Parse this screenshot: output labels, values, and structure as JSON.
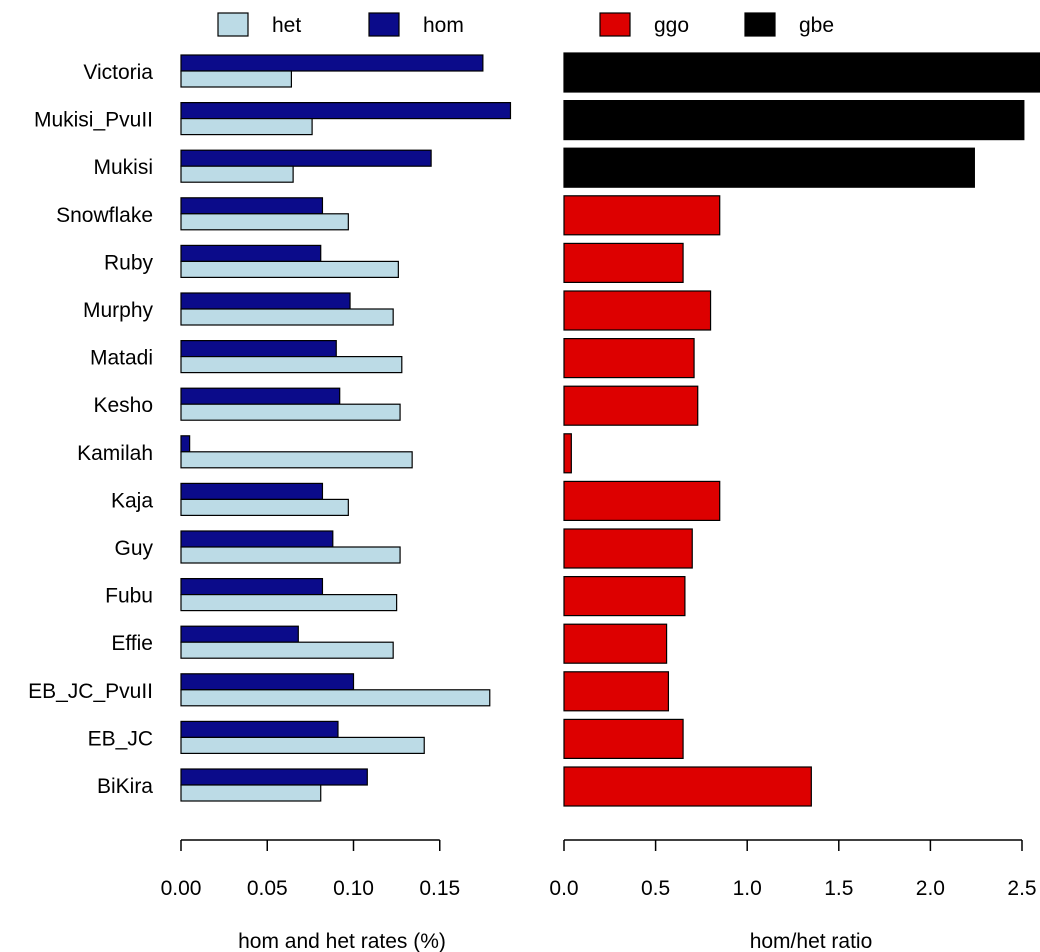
{
  "chart_data": [
    {
      "type": "bar",
      "orientation": "horizontal",
      "categories": [
        "Victoria",
        "Mukisi_PvuII",
        "Mukisi",
        "Snowflake",
        "Ruby",
        "Murphy",
        "Matadi",
        "Kesho",
        "Kamilah",
        "Kaja",
        "Guy",
        "Fubu",
        "Effie",
        "EB_JC_PvuII",
        "EB_JC",
        "BiKira"
      ],
      "series": [
        {
          "name": "hom",
          "color": "#0b0b8a",
          "values": [
            0.175,
            0.191,
            0.145,
            0.082,
            0.081,
            0.098,
            0.09,
            0.092,
            0.005,
            0.082,
            0.088,
            0.082,
            0.068,
            0.1,
            0.091,
            0.108
          ]
        },
        {
          "name": "het",
          "color": "#bcdbe6",
          "values": [
            0.064,
            0.076,
            0.065,
            0.097,
            0.126,
            0.123,
            0.128,
            0.127,
            0.134,
            0.097,
            0.127,
            0.125,
            0.123,
            0.179,
            0.141,
            0.081
          ]
        }
      ],
      "xlabel": "hom and het rates (%)",
      "xticks": [
        "0.00",
        "0.05",
        "0.10",
        "0.15"
      ],
      "xlim": [
        0,
        0.19
      ],
      "grid": false,
      "legend_position": "top"
    },
    {
      "type": "bar",
      "orientation": "horizontal",
      "categories": [
        "Victoria",
        "Mukisi_PvuII",
        "Mukisi",
        "Snowflake",
        "Ruby",
        "Murphy",
        "Matadi",
        "Kesho",
        "Kamilah",
        "Kaja",
        "Guy",
        "Fubu",
        "Effie",
        "EB_JC_PvuII",
        "EB_JC",
        "BiKira"
      ],
      "values": [
        2.62,
        2.51,
        2.24,
        0.85,
        0.65,
        0.8,
        0.71,
        0.73,
        0.04,
        0.85,
        0.7,
        0.66,
        0.56,
        0.57,
        0.65,
        1.35
      ],
      "groups": [
        "gbe",
        "gbe",
        "gbe",
        "ggo",
        "ggo",
        "ggo",
        "ggo",
        "ggo",
        "ggo",
        "ggo",
        "ggo",
        "ggo",
        "ggo",
        "ggo",
        "ggo",
        "ggo"
      ],
      "group_colors": {
        "ggo": "#dd0000",
        "gbe": "#000000"
      },
      "xlabel": "hom/het ratio",
      "xticks": [
        "0.0",
        "0.5",
        "1.0",
        "1.5",
        "2.0",
        "2.5"
      ],
      "xlim": [
        0,
        2.5
      ],
      "grid": false,
      "legend_position": "top"
    }
  ],
  "legend": {
    "left": [
      {
        "name": "het",
        "color": "#bcdbe6"
      },
      {
        "name": "hom",
        "color": "#0b0b8a"
      }
    ],
    "right": [
      {
        "name": "ggo",
        "color": "#dd0000"
      },
      {
        "name": "gbe",
        "color": "#000000"
      }
    ]
  }
}
